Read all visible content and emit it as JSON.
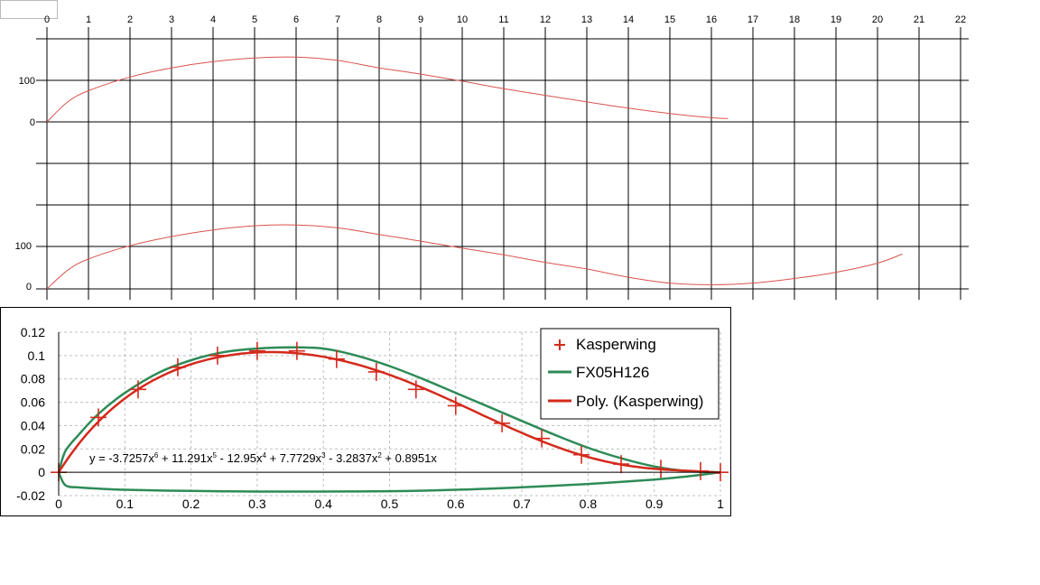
{
  "colors": {
    "grid_line": "#000000",
    "profile_curve": "#d9534f",
    "kasperwing": "#d42a1c",
    "fx05h126": "#2e8b57",
    "poly": "#d42a1c",
    "dashed_grid": "#bfbfbf"
  },
  "chart_data": [
    {
      "type": "line",
      "title": "",
      "xlabel": "",
      "ylabel": "",
      "x_ticks": [
        "0",
        "1",
        "2",
        "3",
        "4",
        "5",
        "6",
        "7",
        "8",
        "9",
        "10",
        "11",
        "12",
        "13",
        "14",
        "15",
        "16",
        "17",
        "18",
        "19",
        "20",
        "21",
        "22"
      ],
      "xlim": [
        0,
        22
      ],
      "y_tick_labels": [
        "100",
        "0"
      ],
      "grid": true,
      "series": [
        {
          "x": [
            0,
            0.5,
            1,
            2,
            3,
            4,
            5,
            6,
            7,
            8,
            9,
            10,
            11,
            12,
            13,
            14,
            15,
            16,
            16.4
          ],
          "y": [
            0,
            48,
            75,
            108,
            130,
            145,
            154,
            156,
            148,
            130,
            115,
            98,
            80,
            64,
            48,
            33,
            20,
            10,
            8
          ]
        }
      ]
    },
    {
      "type": "line",
      "title": "",
      "xlabel": "",
      "ylabel": "",
      "xlim": [
        0,
        22
      ],
      "y_tick_labels": [
        "100",
        "0"
      ],
      "grid": true,
      "series": [
        {
          "x": [
            0,
            0.5,
            1,
            2,
            3,
            4,
            5,
            6,
            7,
            8,
            9,
            10,
            11,
            12,
            13,
            14,
            15,
            16,
            17,
            18,
            19,
            20,
            20.6
          ],
          "y": [
            0,
            45,
            72,
            104,
            126,
            142,
            152,
            154,
            147,
            131,
            115,
            98,
            82,
            64,
            48,
            28,
            14,
            10,
            14,
            25,
            40,
            62,
            84
          ]
        }
      ]
    },
    {
      "type": "scatter",
      "title": "",
      "xlabel": "",
      "ylabel": "",
      "xlim": [
        0,
        1
      ],
      "ylim": [
        -0.02,
        0.12
      ],
      "x_ticks": [
        "0",
        "0.1",
        "0.2",
        "0.3",
        "0.4",
        "0.5",
        "0.6",
        "0.7",
        "0.8",
        "0.9",
        "1"
      ],
      "y_ticks": [
        "0.12",
        "0.1",
        "0.08",
        "0.06",
        "0.04",
        "0.02",
        "0",
        "-0.02"
      ],
      "grid": true,
      "legend_position": "top-right",
      "legend": [
        "Kasperwing",
        "FX05H126",
        "Poly. (Kasperwing)"
      ],
      "equation": "y = -3.7257x6 + 11.291x5 - 12.95x4 + 7.7729x3 - 3.2837x2 + 0.8951x",
      "equation_parts": {
        "a": "y = -3.7257x",
        "e6": "6",
        "b": " + 11.291x",
        "e5": "5",
        "c": " - 12.95x",
        "e4": "4",
        "d": " + 7.7729x",
        "e3": "3",
        "f": " - 3.2837x",
        "e2": "2",
        "g": " + 0.8951x"
      },
      "series": [
        {
          "name": "Kasperwing",
          "marker": "plus",
          "x": [
            0,
            0.06,
            0.12,
            0.18,
            0.24,
            0.3,
            0.36,
            0.42,
            0.48,
            0.54,
            0.6,
            0.67,
            0.73,
            0.79,
            0.85,
            0.91,
            0.97,
            1.0
          ],
          "y": [
            0,
            0.047,
            0.071,
            0.09,
            0.1,
            0.104,
            0.104,
            0.097,
            0.086,
            0.071,
            0.057,
            0.042,
            0.029,
            0.015,
            0.007,
            0.003,
            0.001,
            0
          ]
        },
        {
          "name": "FX05H126",
          "x": [
            0,
            0.01,
            0.03,
            0.06,
            0.1,
            0.15,
            0.2,
            0.25,
            0.3,
            0.35,
            0.4,
            0.45,
            0.5,
            0.55,
            0.6,
            0.65,
            0.7,
            0.75,
            0.8,
            0.85,
            0.9,
            0.95,
            1.0
          ],
          "y": [
            0,
            0.018,
            0.032,
            0.05,
            0.068,
            0.085,
            0.096,
            0.103,
            0.106,
            0.107,
            0.106,
            0.1,
            0.091,
            0.08,
            0.068,
            0.056,
            0.044,
            0.032,
            0.021,
            0.012,
            0.005,
            0.001,
            0
          ]
        },
        {
          "name": "FX05H126 lower",
          "x": [
            0,
            0.01,
            0.03,
            0.06,
            0.1,
            0.2,
            0.3,
            0.4,
            0.5,
            0.6,
            0.7,
            0.8,
            0.9,
            0.95,
            1.0
          ],
          "y": [
            0,
            -0.011,
            -0.013,
            -0.014,
            -0.015,
            -0.016,
            -0.0165,
            -0.0165,
            -0.0162,
            -0.015,
            -0.0128,
            -0.01,
            -0.0062,
            -0.0035,
            0
          ]
        },
        {
          "name": "Poly. (Kasperwing)",
          "type": "polynomial",
          "coefficients": [
            0,
            0.8951,
            -3.2837,
            7.7729,
            -12.95,
            11.291,
            -3.7257
          ]
        }
      ]
    }
  ]
}
